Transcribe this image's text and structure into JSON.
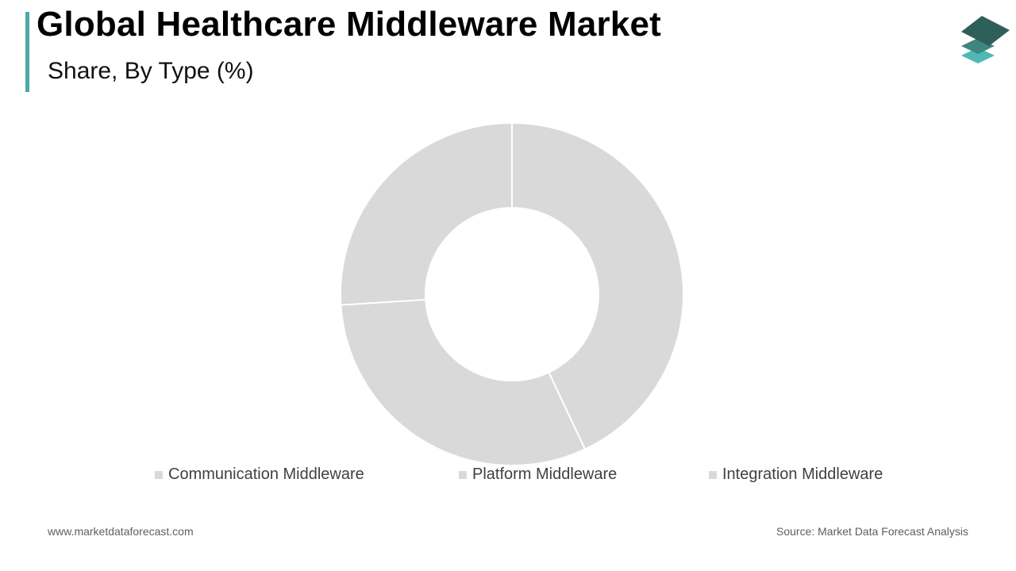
{
  "header": {
    "title": "Global Healthcare Middleware Market",
    "subtitle": "Share, By Type (%)"
  },
  "colors": {
    "accent": "#4aa9a6",
    "slice": "#d9d9d9",
    "slice_border": "#ffffff",
    "legend_text": "#404040",
    "logo_dark": "#2f5f5a",
    "logo_mid": "#3f8580",
    "logo_light": "#4fb8b4"
  },
  "logo": {
    "icon": "stacked-layers-icon"
  },
  "chart_data": {
    "type": "pie",
    "variant": "donut",
    "title": "Global Healthcare Middleware Market",
    "subtitle": "Share, By Type (%)",
    "categories": [
      "Communication Middleware",
      "Platform Middleware",
      "Integration Middleware"
    ],
    "values": [
      43,
      31,
      26
    ],
    "legend_position": "bottom",
    "start_angle": "top",
    "direction": "clockwise"
  },
  "footer": {
    "website": "www.marketdataforecast.com",
    "source": "Source: Market Data Forecast Analysis"
  }
}
